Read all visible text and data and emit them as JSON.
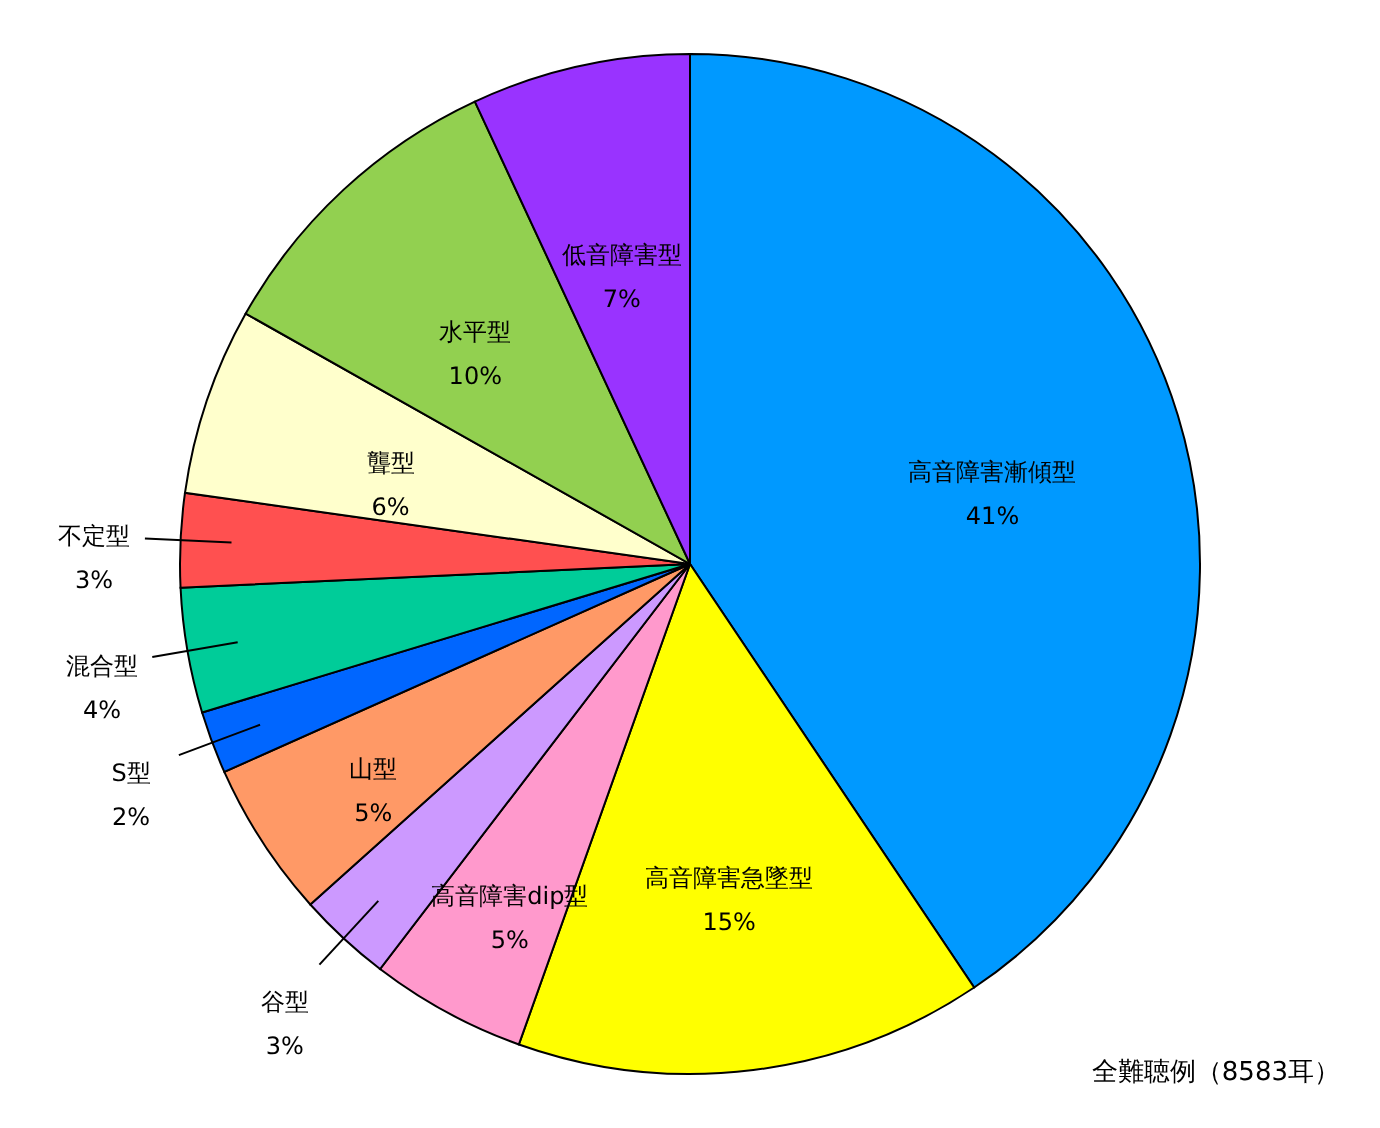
{
  "chart_data": {
    "type": "pie",
    "categories": [
      "高音障害漸傾型",
      "高音障害急墜型",
      "高音障害dip型",
      "谷型",
      "山型",
      "S型",
      "混合型",
      "不定型",
      "聾型",
      "水平型",
      "低音障害型"
    ],
    "values": [
      41,
      15,
      5,
      3,
      5,
      2,
      4,
      3,
      6,
      10,
      7
    ],
    "value_labels": [
      "41%",
      "15%",
      "5%",
      "3%",
      "5%",
      "2%",
      "4%",
      "3%",
      "6%",
      "10%",
      "7%"
    ],
    "colors": [
      "#0099ff",
      "#ffff00",
      "#ff99cc",
      "#cc99ff",
      "#ff9966",
      "#0066ff",
      "#00cc99",
      "#ff5050",
      "#ffffcc",
      "#92d050",
      "#9933ff"
    ],
    "annotations": [
      "全難聴例（8583耳）"
    ]
  }
}
